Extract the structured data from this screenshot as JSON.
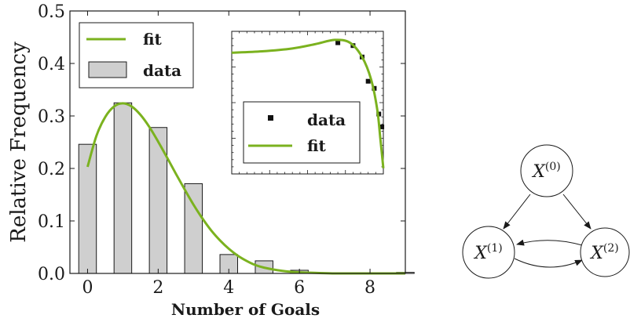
{
  "chart_data": {
    "type": "bar",
    "xlabel": "Number of Goals",
    "ylabel": "Relative Frequency",
    "xlim": [
      -0.5,
      9
    ],
    "ylim": [
      0,
      0.5
    ],
    "x_ticks": [
      "0",
      "2",
      "4",
      "6",
      "8"
    ],
    "y_ticks": [
      "0.0",
      "0.1",
      "0.2",
      "0.3",
      "0.4",
      "0.5"
    ],
    "legend_placement": "top-left",
    "series": [
      {
        "name": "data",
        "type": "bar",
        "color": "#cfcfcf",
        "x": [
          0,
          1,
          2,
          3,
          4,
          5,
          6,
          7,
          8,
          9
        ],
        "values": [
          0.246,
          0.325,
          0.278,
          0.171,
          0.036,
          0.024,
          0.006,
          0.0,
          0.0,
          0.002
        ]
      },
      {
        "name": "fit",
        "type": "line",
        "color": "#7bb21f",
        "x": [
          0,
          0.25,
          0.5,
          0.75,
          1,
          1.25,
          1.5,
          1.75,
          2,
          2.25,
          2.5,
          2.75,
          3,
          3.25,
          3.5,
          3.75,
          4,
          4.25,
          4.5,
          4.75,
          5,
          5.5,
          6,
          6.5,
          7,
          7.5,
          8,
          8.5,
          9
        ],
        "values": [
          0.203,
          0.262,
          0.298,
          0.318,
          0.324,
          0.318,
          0.302,
          0.279,
          0.251,
          0.221,
          0.19,
          0.16,
          0.131,
          0.105,
          0.082,
          0.063,
          0.047,
          0.034,
          0.024,
          0.016,
          0.011,
          0.005,
          0.002,
          0.001,
          0.0,
          0.0,
          0.0,
          0.0,
          0.0
        ]
      }
    ],
    "legend": [
      {
        "label": "fit",
        "kind": "line"
      },
      {
        "label": "data",
        "kind": "bar"
      }
    ],
    "inset": {
      "type": "scatter",
      "scale": "log-log",
      "legend_placement": "bottom",
      "legend": [
        {
          "label": "data",
          "kind": "marker"
        },
        {
          "label": "fit",
          "kind": "line"
        }
      ],
      "points_norm": [
        [
          0.7,
          0.92
        ],
        [
          0.8,
          0.9
        ],
        [
          0.86,
          0.82
        ],
        [
          0.9,
          0.65
        ],
        [
          0.94,
          0.6
        ],
        [
          0.97,
          0.42
        ],
        [
          0.99,
          0.33
        ]
      ],
      "fit_norm": [
        [
          0,
          0.85
        ],
        [
          0.2,
          0.86
        ],
        [
          0.4,
          0.88
        ],
        [
          0.55,
          0.91
        ],
        [
          0.68,
          0.94
        ],
        [
          0.78,
          0.92
        ],
        [
          0.86,
          0.82
        ],
        [
          0.92,
          0.66
        ],
        [
          0.96,
          0.45
        ],
        [
          0.98,
          0.25
        ],
        [
          1.0,
          0.04
        ]
      ]
    }
  },
  "diagram": {
    "nodes": [
      {
        "id": "x0",
        "base": "X",
        "sup": "(0)"
      },
      {
        "id": "x1",
        "base": "X",
        "sup": "(1)"
      },
      {
        "id": "x2",
        "base": "X",
        "sup": "(2)"
      }
    ],
    "edges": [
      {
        "from": "x0",
        "to": "x1"
      },
      {
        "from": "x0",
        "to": "x2"
      },
      {
        "from": "x1",
        "to": "x2"
      },
      {
        "from": "x2",
        "to": "x1"
      }
    ]
  }
}
